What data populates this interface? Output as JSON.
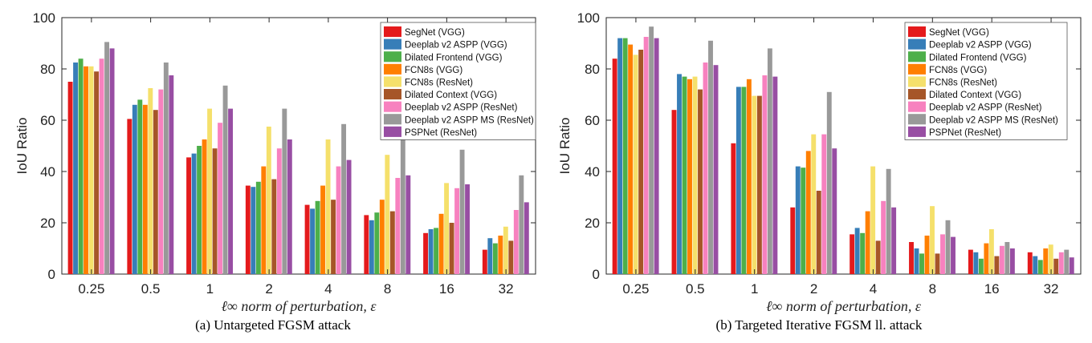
{
  "captions": [
    "(a) Untargeted FGSM attack",
    "(b) Targeted Iterative FGSM ll. attack"
  ],
  "series_colors": [
    "#e41a1c",
    "#377eb8",
    "#4daf4a",
    "#ff7f00",
    "#f5e06b",
    "#a65628",
    "#f781bf",
    "#999999",
    "#984ea3"
  ],
  "chart_data": [
    {
      "type": "bar",
      "title": "",
      "xlabel": "ℓ∞ norm of perturbation, ε",
      "ylabel": "IoU Ratio",
      "ylim": [
        0,
        100
      ],
      "yticks": [
        0,
        20,
        40,
        60,
        80,
        100
      ],
      "grid": false,
      "legend_position": "top-right",
      "categories": [
        "0.25",
        "0.5",
        "1",
        "2",
        "4",
        "8",
        "16",
        "32"
      ],
      "series": [
        {
          "name": "SegNet (VGG)",
          "values": [
            75,
            60.5,
            45.5,
            34.5,
            27,
            23,
            16,
            9.5
          ]
        },
        {
          "name": "Deeplab v2 ASPP (VGG)",
          "values": [
            82.5,
            66,
            47,
            34,
            25.5,
            21,
            17.5,
            14
          ]
        },
        {
          "name": "Dilated Frontend (VGG)",
          "values": [
            84,
            68,
            50,
            36,
            28.5,
            24,
            18,
            12
          ]
        },
        {
          "name": "FCN8s (VGG)",
          "values": [
            81,
            66,
            52.5,
            42,
            34.5,
            29,
            23.5,
            15
          ]
        },
        {
          "name": "FCN8s (ResNet)",
          "values": [
            81,
            72.5,
            64.5,
            57.5,
            52.5,
            46.5,
            35.5,
            18.5
          ]
        },
        {
          "name": "Dilated Context (VGG)",
          "values": [
            79,
            64,
            49,
            37,
            29,
            24.5,
            20,
            13
          ]
        },
        {
          "name": "Deeplab v2 ASPP (ResNet)",
          "values": [
            84,
            72,
            59,
            49,
            42,
            37.5,
            33.5,
            25
          ]
        },
        {
          "name": "Deeplab v2 ASPP MS (ResNet)",
          "values": [
            90.5,
            82.5,
            73.5,
            64.5,
            58.5,
            53.5,
            48.5,
            38.5
          ]
        },
        {
          "name": "PSPNet (ResNet)",
          "values": [
            88,
            77.5,
            64.5,
            52.5,
            44.5,
            38.5,
            35,
            28
          ]
        }
      ]
    },
    {
      "type": "bar",
      "title": "",
      "xlabel": "ℓ∞ norm of perturbation, ε",
      "ylabel": "IoU Ratio",
      "ylim": [
        0,
        100
      ],
      "yticks": [
        0,
        20,
        40,
        60,
        80,
        100
      ],
      "grid": false,
      "legend_position": "top-right",
      "categories": [
        "0.25",
        "0.5",
        "1",
        "2",
        "4",
        "8",
        "16",
        "32"
      ],
      "series": [
        {
          "name": "SegNet (VGG)",
          "values": [
            84,
            64,
            51,
            26,
            15.5,
            12.5,
            9.5,
            8.5
          ]
        },
        {
          "name": "Deeplab v2 ASPP (VGG)",
          "values": [
            92,
            78,
            73,
            42,
            18,
            10,
            8.5,
            7
          ]
        },
        {
          "name": "Dilated Frontend (VGG)",
          "values": [
            92,
            77,
            73,
            41.5,
            16,
            8,
            6,
            5.5
          ]
        },
        {
          "name": "FCN8s (VGG)",
          "values": [
            89.5,
            76,
            76,
            48,
            24.5,
            15,
            12,
            10
          ]
        },
        {
          "name": "FCN8s (ResNet)",
          "values": [
            85.5,
            77,
            69.5,
            54.5,
            42,
            26.5,
            17.5,
            11.5
          ]
        },
        {
          "name": "Dilated Context (VGG)",
          "values": [
            87.5,
            72,
            69.5,
            32.5,
            13,
            8,
            7,
            6
          ]
        },
        {
          "name": "Deeplab v2 ASPP (ResNet)",
          "values": [
            92.5,
            82.5,
            77.5,
            54.5,
            28.5,
            15.5,
            11,
            8.5
          ]
        },
        {
          "name": "Deeplab v2 ASPP MS (ResNet)",
          "values": [
            96.5,
            91,
            88,
            71,
            41,
            21,
            12.5,
            9.5
          ]
        },
        {
          "name": "PSPNet (ResNet)",
          "values": [
            92,
            81.5,
            77,
            49,
            26,
            14.5,
            10,
            6.5
          ]
        }
      ]
    }
  ]
}
